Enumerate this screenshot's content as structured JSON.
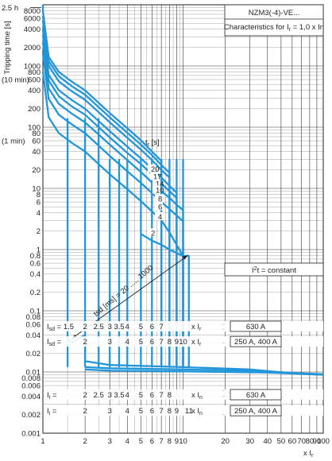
{
  "chart_data": {
    "type": "line",
    "title": "NZM3(-4)-VE...",
    "subtitle_parts": [
      "Characteristics for I",
      "r",
      " = 1,0 x I",
      "n"
    ],
    "ylabel": "Tripping time [s]",
    "xlabel_parts": [
      "x I",
      "r"
    ],
    "x_scale": "log",
    "y_scale": "log",
    "xlim": [
      1,
      100
    ],
    "ylim": [
      0.001,
      10000
    ],
    "x_ticks": [
      1,
      2,
      3,
      4,
      5,
      6,
      7,
      8,
      9,
      10,
      20,
      30,
      40,
      50,
      60,
      70,
      80,
      90,
      100
    ],
    "y_ticks": [
      {
        "v": 8000,
        "t": "8000"
      },
      {
        "v": 6000,
        "t": "6000"
      },
      {
        "v": 4000,
        "t": "4000"
      },
      {
        "v": 2000,
        "t": "2000"
      },
      {
        "v": 1000,
        "t": "1000"
      },
      {
        "v": 800,
        "t": "800"
      },
      {
        "v": 600,
        "t": "600"
      },
      {
        "v": 400,
        "t": "400"
      },
      {
        "v": 200,
        "t": "200"
      },
      {
        "v": 100,
        "t": "100"
      },
      {
        "v": 80,
        "t": "80"
      },
      {
        "v": 60,
        "t": "60"
      },
      {
        "v": 40,
        "t": "40"
      },
      {
        "v": 20,
        "t": "20"
      },
      {
        "v": 10,
        "t": "10"
      },
      {
        "v": 8,
        "t": "8"
      },
      {
        "v": 6,
        "t": "6"
      },
      {
        "v": 4,
        "t": "4"
      },
      {
        "v": 2,
        "t": "2"
      },
      {
        "v": 1,
        "t": "1"
      },
      {
        "v": 0.8,
        "t": "0.8"
      },
      {
        "v": 0.6,
        "t": "0.6"
      },
      {
        "v": 0.4,
        "t": "0.4"
      },
      {
        "v": 0.2,
        "t": "0.2"
      },
      {
        "v": 0.1,
        "t": "0.1"
      },
      {
        "v": 0.08,
        "t": "0.08"
      },
      {
        "v": 0.06,
        "t": "0.06"
      },
      {
        "v": 0.04,
        "t": "0.04"
      },
      {
        "v": 0.02,
        "t": "0.02"
      },
      {
        "v": 0.01,
        "t": "0.01"
      },
      {
        "v": 0.008,
        "t": "0.008"
      },
      {
        "v": 0.006,
        "t": "0.006"
      },
      {
        "v": 0.004,
        "t": "0.004"
      },
      {
        "v": 0.002,
        "t": "0.002"
      },
      {
        "v": 0.001,
        "t": "0.001"
      }
    ],
    "y_side_labels": [
      {
        "v": 9000,
        "t": "2.5 h"
      },
      {
        "v": 600,
        "t": "(10 min)"
      },
      {
        "v": 60,
        "t": "(1 min)"
      }
    ],
    "tr_legend_header": [
      "t",
      "r",
      " [s]"
    ],
    "tr_values": [
      "20",
      "17",
      "14",
      "10",
      "8",
      "6",
      "4",
      "2"
    ],
    "i2t_label": [
      "I",
      "2",
      "t = constant"
    ],
    "tsd_label": "tsd [ms] = 20 ..... 1000",
    "series": [
      {
        "tr": 20,
        "thermal": [
          [
            1.0,
            8000
          ],
          [
            1.1,
            1400
          ],
          [
            1.3,
            800
          ],
          [
            1.6,
            560
          ],
          [
            2.0,
            400
          ],
          [
            3.0,
            170
          ],
          [
            4.0,
            96
          ],
          [
            5.0,
            61
          ],
          [
            6.0,
            40
          ],
          [
            7.0,
            28
          ]
        ]
      },
      {
        "tr": 17,
        "thermal": [
          [
            1.0,
            6500
          ],
          [
            1.1,
            1200
          ],
          [
            1.3,
            680
          ],
          [
            1.6,
            470
          ],
          [
            2.0,
            340
          ],
          [
            3.0,
            145
          ],
          [
            4.0,
            81
          ],
          [
            5.0,
            52
          ],
          [
            6.0,
            35
          ],
          [
            7.0,
            24
          ],
          [
            8.0,
            18
          ]
        ]
      },
      {
        "tr": 14,
        "thermal": [
          [
            1.0,
            5500
          ],
          [
            1.1,
            1000
          ],
          [
            1.3,
            560
          ],
          [
            1.6,
            390
          ],
          [
            2.0,
            280
          ],
          [
            3.0,
            120
          ],
          [
            4.0,
            67
          ],
          [
            5.0,
            43
          ],
          [
            6.0,
            29
          ],
          [
            7.0,
            20
          ],
          [
            8.0,
            15
          ]
        ]
      },
      {
        "tr": 10,
        "thermal": [
          [
            1.0,
            4000
          ],
          [
            1.1,
            720
          ],
          [
            1.3,
            400
          ],
          [
            1.6,
            280
          ],
          [
            2.0,
            200
          ],
          [
            3.0,
            86
          ],
          [
            4.0,
            48
          ],
          [
            5.0,
            31
          ],
          [
            6.0,
            21
          ],
          [
            7.0,
            15
          ],
          [
            8.0,
            11
          ],
          [
            9.0,
            8.5
          ]
        ]
      },
      {
        "tr": 8,
        "thermal": [
          [
            1.0,
            3200
          ],
          [
            1.1,
            580
          ],
          [
            1.3,
            320
          ],
          [
            1.6,
            220
          ],
          [
            2.0,
            160
          ],
          [
            3.0,
            68
          ],
          [
            4.0,
            38
          ],
          [
            5.0,
            25
          ],
          [
            6.0,
            17
          ],
          [
            7.0,
            12
          ],
          [
            8.0,
            9
          ],
          [
            9.0,
            7
          ]
        ]
      },
      {
        "tr": 6,
        "thermal": [
          [
            1.0,
            2400
          ],
          [
            1.1,
            430
          ],
          [
            1.3,
            240
          ],
          [
            1.6,
            168
          ],
          [
            2.0,
            120
          ],
          [
            3.0,
            52
          ],
          [
            4.0,
            29
          ],
          [
            5.0,
            18.5
          ],
          [
            6.0,
            12.5
          ],
          [
            7.0,
            9
          ],
          [
            8.0,
            7
          ],
          [
            9.0,
            5.4
          ],
          [
            10.0,
            4.4
          ]
        ]
      },
      {
        "tr": 4,
        "thermal": [
          [
            1.0,
            1600
          ],
          [
            1.1,
            290
          ],
          [
            1.3,
            160
          ],
          [
            1.6,
            112
          ],
          [
            2.0,
            80
          ],
          [
            3.0,
            34
          ],
          [
            4.0,
            19
          ],
          [
            5.0,
            12.3
          ],
          [
            6.0,
            8.4
          ],
          [
            7.0,
            6
          ],
          [
            8.0,
            4.6
          ],
          [
            9.0,
            3.6
          ],
          [
            10.0,
            2.9
          ]
        ]
      },
      {
        "tr": 2,
        "thermal": [
          [
            1.0,
            800
          ],
          [
            1.1,
            145
          ],
          [
            1.3,
            80
          ],
          [
            1.6,
            56
          ],
          [
            2.0,
            40
          ],
          [
            3.0,
            17
          ],
          [
            4.0,
            9.7
          ],
          [
            5.0,
            6.2
          ],
          [
            6.0,
            4.2
          ],
          [
            7.0,
            3.0
          ],
          [
            8.0,
            1.9
          ],
          [
            9.0,
            1.2
          ],
          [
            10.0,
            0.78
          ]
        ]
      }
    ],
    "short_delay_drops": [
      1.5,
      2,
      2.5,
      3,
      3.5,
      4,
      5,
      6,
      7,
      8,
      9,
      10
    ],
    "i2t_curve": [
      [
        5.0,
        1.8
      ],
      [
        6.0,
        1.4
      ],
      [
        7.0,
        1.2
      ],
      [
        8.0,
        1.0
      ],
      [
        9.0,
        0.88
      ],
      [
        10.0,
        0.78
      ],
      [
        11.0,
        0.8
      ]
    ],
    "instantaneous_floor": {
      "upper": [
        [
          1.5,
          0.035
        ],
        [
          1.6,
          0.03
        ],
        [
          2.0,
          0.04
        ],
        [
          2.0,
          0.015
        ],
        [
          3.0,
          0.013
        ],
        [
          10.0,
          0.012
        ],
        [
          30.0,
          0.011
        ],
        [
          60.0,
          0.0095
        ],
        [
          100.0,
          0.009
        ]
      ],
      "middle": [
        [
          2.0,
          0.012
        ],
        [
          3.0,
          0.0115
        ],
        [
          10.0,
          0.011
        ],
        [
          30.0,
          0.0105
        ],
        [
          70.0,
          0.0095
        ],
        [
          100.0,
          0.0092
        ]
      ],
      "lower": [
        [
          2.0,
          0.011
        ],
        [
          3.0,
          0.0105
        ],
        [
          10.0,
          0.0102
        ],
        [
          40.0,
          0.0098
        ],
        [
          80.0,
          0.0092
        ],
        [
          100.0,
          0.009
        ]
      ]
    },
    "tables": [
      {
        "prefix": [
          "I",
          "sd",
          " = 1.5"
        ],
        "values": [
          "2",
          "2.5",
          "3",
          "3.5",
          "4",
          "5",
          "6",
          "7"
        ],
        "x": [
          2,
          2.5,
          3,
          3.5,
          4,
          5,
          6,
          7
        ],
        "y": 0.055,
        "unit": [
          "x I",
          "r"
        ],
        "rating": "630 A"
      },
      {
        "prefix": [
          "I",
          "sd",
          " = "
        ],
        "values": [
          "2",
          "3",
          "4",
          "5",
          "6",
          "7",
          "8",
          "9",
          "10"
        ],
        "x": [
          2,
          3,
          4,
          5,
          6,
          7,
          8,
          9,
          10
        ],
        "y": 0.031,
        "unit": [
          "x I",
          "r"
        ],
        "rating": "250 A, 400 A"
      },
      {
        "prefix": [
          "I",
          "i",
          " = "
        ],
        "values": [
          "2",
          "2.5",
          "3",
          "3.5",
          "4",
          "5",
          "6",
          "7",
          "8"
        ],
        "x": [
          2,
          2.5,
          3,
          3.5,
          4,
          5,
          6,
          7,
          8
        ],
        "y": 0.0042,
        "unit": [
          "x I",
          "n"
        ],
        "rating": "630 A"
      },
      {
        "prefix": [
          "I",
          "i",
          " = "
        ],
        "values": [
          "2",
          "3",
          "4",
          "5",
          "6",
          "7",
          "8",
          "9",
          "11"
        ],
        "x": [
          2,
          3,
          4,
          5,
          6,
          7,
          8,
          9,
          11
        ],
        "y": 0.0023,
        "unit": [
          "x I",
          "n"
        ],
        "rating": "250 A, 400 A"
      }
    ],
    "grid": true,
    "colors": {
      "curve": "#2196d8",
      "grid": "#333333",
      "text": "#222222"
    }
  }
}
